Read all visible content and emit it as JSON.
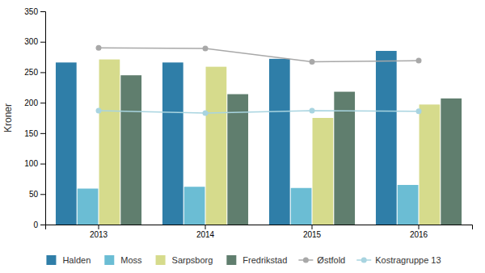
{
  "chart_data": {
    "type": "bar",
    "categories": [
      "2013",
      "2014",
      "2015",
      "2016"
    ],
    "series": [
      {
        "name": "Halden",
        "color": "#2f7ea8",
        "values": [
          266,
          266,
          272,
          285
        ]
      },
      {
        "name": "Moss",
        "color": "#6bbdd4",
        "values": [
          59,
          62,
          60,
          65
        ]
      },
      {
        "name": "Sarpsborg",
        "color": "#d6db8c",
        "values": [
          271,
          259,
          175,
          197
        ]
      },
      {
        "name": "Fredrikstad",
        "color": "#607e6e",
        "values": [
          245,
          214,
          218,
          207
        ]
      },
      {
        "name": "Østfold",
        "type": "line",
        "marker": "circle",
        "color": "#a8a8a8",
        "values": [
          290,
          289,
          267,
          269
        ]
      },
      {
        "name": "Kostragruppe 13",
        "type": "line",
        "marker": "circle",
        "color": "#a8d4e0",
        "values": [
          187,
          183,
          187,
          186
        ]
      }
    ],
    "y_label": "Kroner",
    "ylim": [
      0,
      350
    ],
    "yticks": [
      0,
      50,
      100,
      150,
      200,
      250,
      300,
      350
    ],
    "grid": false,
    "legend": "bottom"
  }
}
